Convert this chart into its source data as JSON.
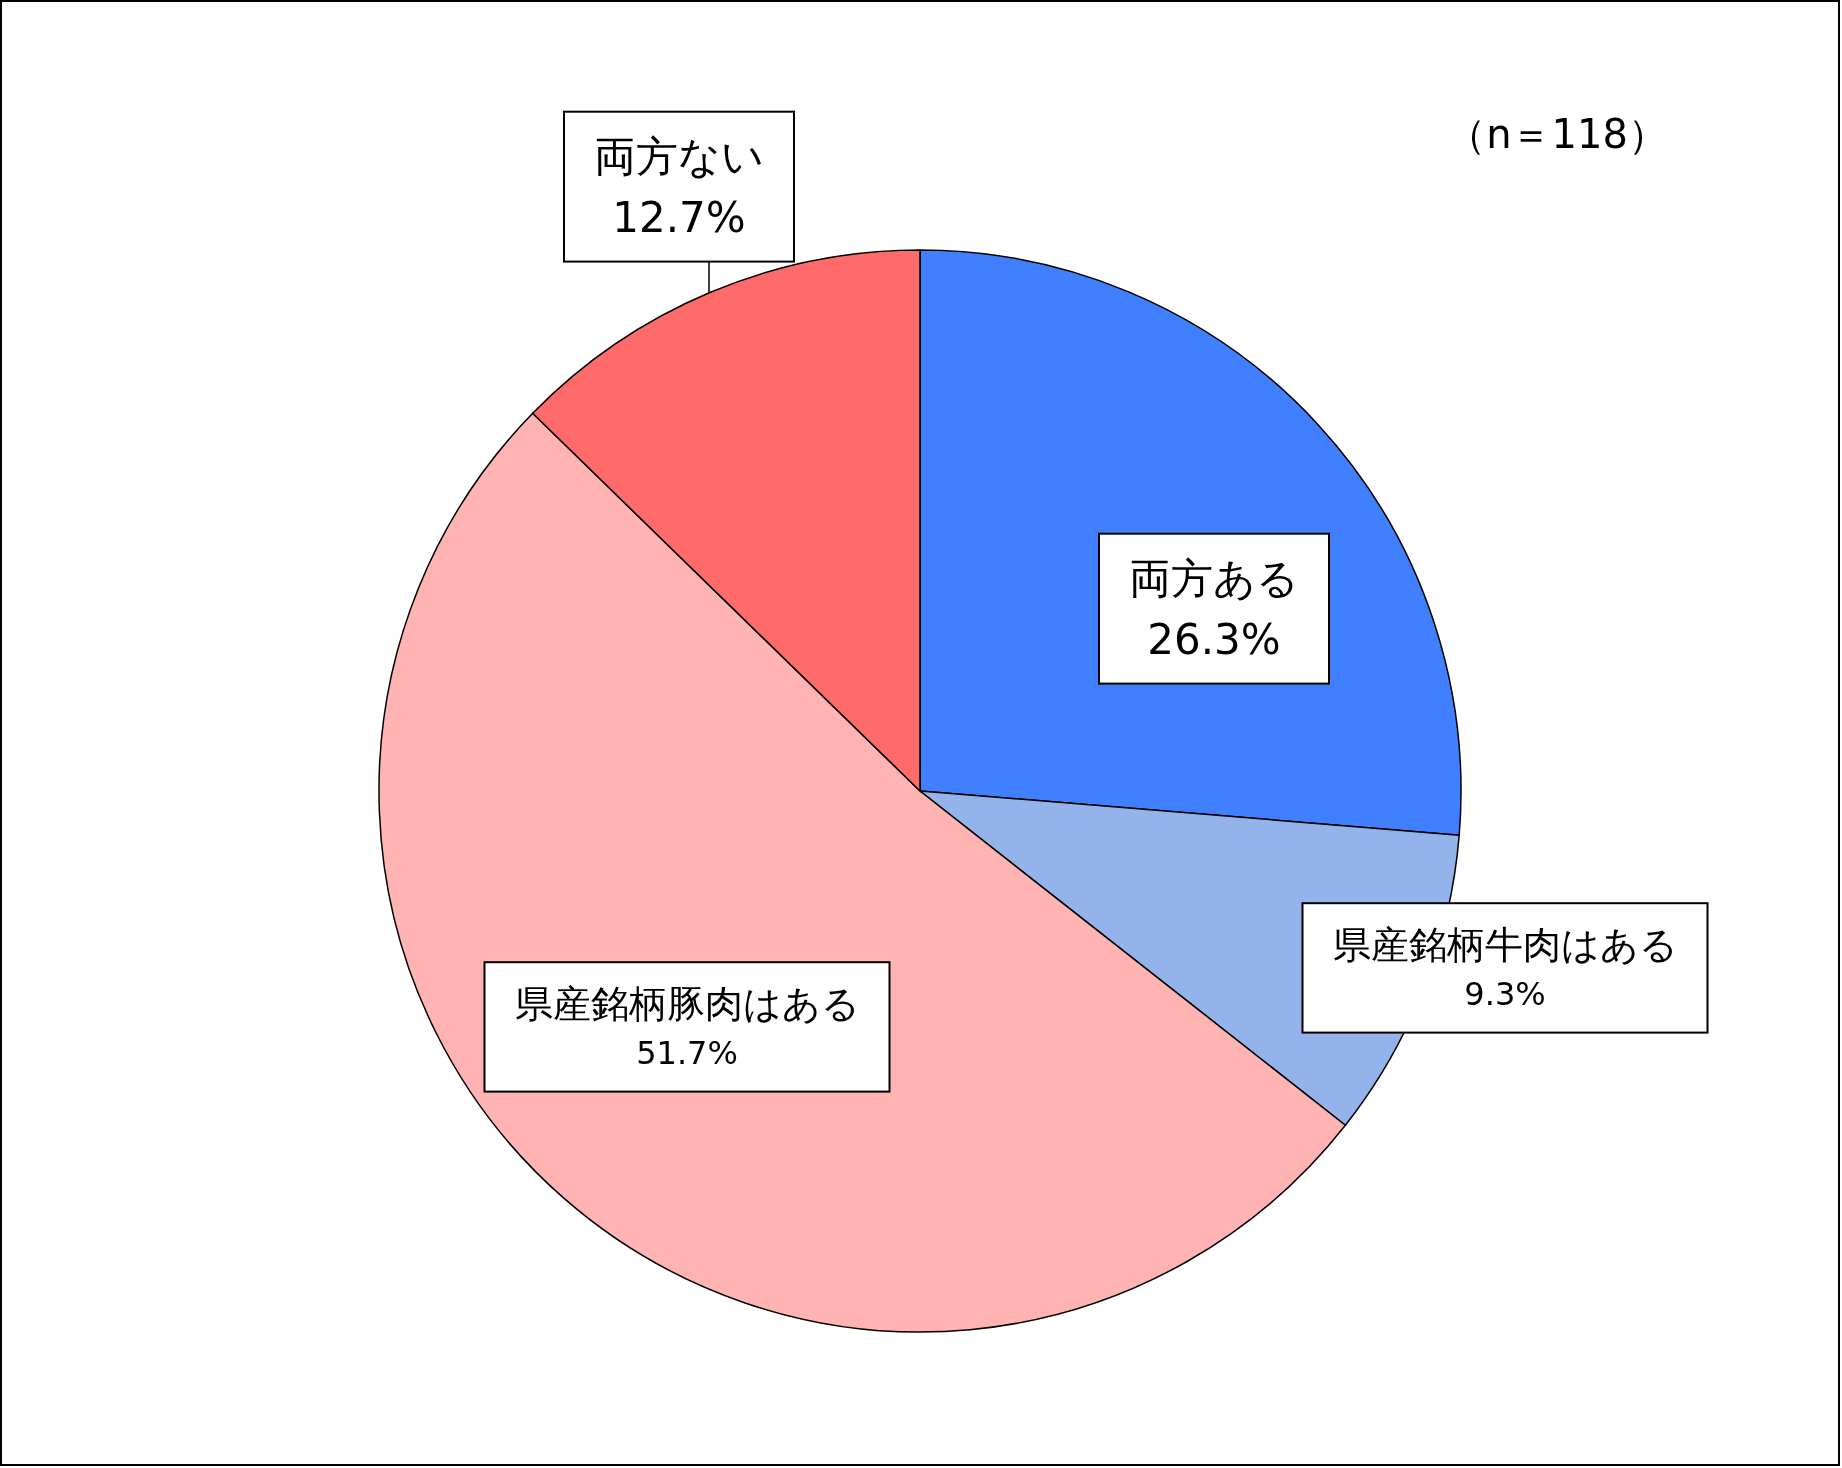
{
  "chart_data": {
    "type": "pie",
    "categories": [
      "両方ある",
      "県産銘柄牛肉はある",
      "県産銘柄豚肉はある",
      "両方ない"
    ],
    "values": [
      26.3,
      9.3,
      51.7,
      12.7
    ],
    "colors": [
      "#4080ff",
      "#95b3eb",
      "#ffb3b3",
      "#ff6b6b"
    ],
    "value_labels": [
      "26.3%",
      "9.3%",
      "51.7%",
      "12.7%"
    ],
    "annotations": [
      "（n＝118）"
    ],
    "legend": false
  }
}
